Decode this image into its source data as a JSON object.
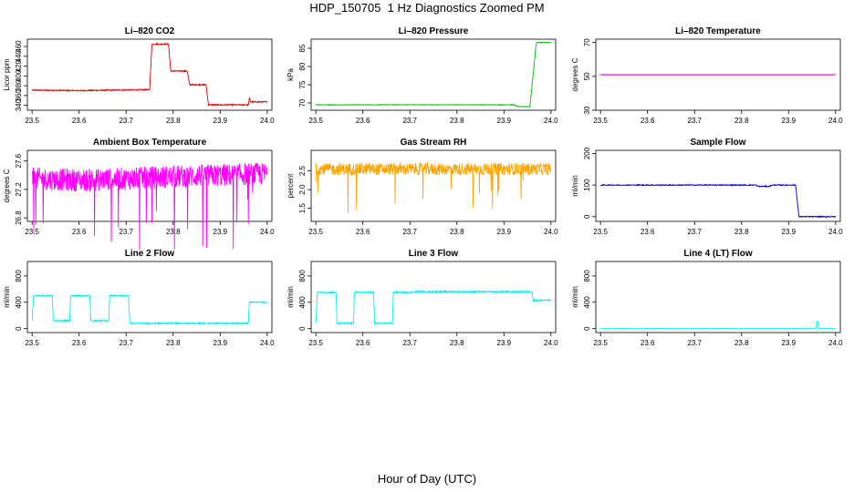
{
  "title": "HDP_150705  1 Hz Diagnostics Zoomed PM",
  "xlabel": "Hour of Day (UTC)",
  "colors": {
    "red": "#dd0000",
    "green": "#00bb00",
    "magenta": "#ff00ff",
    "orange": "#ffa500",
    "blue": "#0000cc",
    "cyan": "#00eeee"
  },
  "chart_data": [
    {
      "type": "line",
      "title": "Li–820 CO2",
      "xlabel": "",
      "ylabel": "Licor ppm",
      "xlim": [
        23.49,
        24.01
      ],
      "ylim": [
        330,
        475
      ],
      "xticks": [
        "23.5",
        "23.6",
        "23.7",
        "23.8",
        "23.9",
        "24.0"
      ],
      "yticks": [
        "340",
        "360",
        "380",
        "400",
        "420",
        "440",
        "460"
      ],
      "color": "red",
      "series": [
        {
          "x": [
            23.5,
            23.6,
            23.75,
            23.755,
            23.79,
            23.795,
            23.83,
            23.835,
            23.87,
            23.875,
            23.96,
            23.962,
            23.965,
            23.97,
            24.0
          ],
          "y": [
            371,
            370,
            372,
            465,
            465,
            410,
            410,
            382,
            382,
            341,
            341,
            355,
            347,
            347,
            347
          ]
        }
      ]
    },
    {
      "type": "line",
      "title": "Li–820 Pressure",
      "xlabel": "",
      "ylabel": "kPa",
      "xlim": [
        23.49,
        24.01
      ],
      "ylim": [
        68,
        87.5
      ],
      "xticks": [
        "23.5",
        "23.6",
        "23.7",
        "23.8",
        "23.9",
        "24.0"
      ],
      "yticks": [
        "70",
        "75",
        "80",
        "85"
      ],
      "color": "green",
      "series": [
        {
          "x": [
            23.5,
            23.92,
            23.93,
            23.955,
            23.96,
            23.968,
            23.97,
            24.0
          ],
          "y": [
            69.5,
            69.5,
            69.0,
            69.0,
            75.0,
            85.5,
            86.6,
            86.6
          ]
        }
      ]
    },
    {
      "type": "line",
      "title": "Li–820 Temperature",
      "xlabel": "",
      "ylabel": "degrees C",
      "xlim": [
        23.49,
        24.01
      ],
      "ylim": [
        30,
        72
      ],
      "xticks": [
        "23.5",
        "23.6",
        "23.7",
        "23.8",
        "23.9",
        "24.0"
      ],
      "yticks": [
        "30",
        "50",
        "70"
      ],
      "color": "magenta",
      "series": [
        {
          "x": [
            23.5,
            24.0
          ],
          "y": [
            51.0,
            51.0
          ]
        }
      ]
    },
    {
      "type": "line",
      "title": "Ambient Box Temperature",
      "xlabel": "",
      "ylabel": "degrees C",
      "xlim": [
        23.49,
        24.01
      ],
      "ylim": [
        26.75,
        27.75
      ],
      "xticks": [
        "23.5",
        "23.6",
        "23.7",
        "23.8",
        "23.9",
        "24.0"
      ],
      "yticks": [
        "26.8",
        "27.2",
        "27.6"
      ],
      "color": "magenta",
      "series": [
        {
          "x": [
            23.5,
            23.6,
            23.7,
            23.8,
            23.9,
            24.0
          ],
          "y": [
            27.35,
            27.33,
            27.35,
            27.38,
            27.4,
            27.42
          ]
        }
      ]
    },
    {
      "type": "line",
      "title": "Gas Stream RH",
      "xlabel": "",
      "ylabel": "percent",
      "xlim": [
        23.49,
        24.01
      ],
      "ylim": [
        1.15,
        3.05
      ],
      "xticks": [
        "23.5",
        "23.6",
        "23.7",
        "23.8",
        "23.9",
        "24.0"
      ],
      "yticks": [
        "1.5",
        "2.0",
        "2.5"
      ],
      "color": "orange",
      "series": [
        {
          "x": [
            23.5,
            23.6,
            23.7,
            23.8,
            23.9,
            24.0
          ],
          "y": [
            2.55,
            2.55,
            2.55,
            2.55,
            2.55,
            2.55
          ]
        }
      ]
    },
    {
      "type": "line",
      "title": "Sample Flow",
      "xlabel": "",
      "ylabel": "ml/min",
      "xlim": [
        23.49,
        24.01
      ],
      "ylim": [
        -15,
        210
      ],
      "xticks": [
        "23.5",
        "23.6",
        "23.7",
        "23.8",
        "23.9",
        "24.0"
      ],
      "yticks": [
        "0",
        "100",
        "200"
      ],
      "color": "blue",
      "series": [
        {
          "x": [
            23.5,
            23.83,
            23.835,
            23.86,
            23.865,
            23.915,
            23.922,
            23.93,
            24.0
          ],
          "y": [
            100,
            100,
            96,
            96,
            100,
            100,
            0,
            0,
            0
          ]
        }
      ]
    },
    {
      "type": "line",
      "title": "Line 2 Flow",
      "xlabel": "",
      "ylabel": "ml/min",
      "xlim": [
        23.49,
        24.01
      ],
      "ylim": [
        -60,
        1020
      ],
      "xticks": [
        "23.5",
        "23.6",
        "23.7",
        "23.8",
        "23.9",
        "24.0"
      ],
      "yticks": [
        "0",
        "400",
        "800"
      ],
      "color": "cyan",
      "series": [
        {
          "x": [
            23.5,
            23.503,
            23.543,
            23.545,
            23.58,
            23.582,
            23.623,
            23.625,
            23.663,
            23.665,
            23.705,
            23.708,
            23.96,
            23.962,
            24.0
          ],
          "y": [
            120,
            500,
            500,
            120,
            120,
            500,
            500,
            120,
            120,
            500,
            500,
            80,
            80,
            400,
            400
          ]
        }
      ]
    },
    {
      "type": "line",
      "title": "Line 3 Flow",
      "xlabel": "",
      "ylabel": "ml/min",
      "xlim": [
        23.49,
        24.01
      ],
      "ylim": [
        -60,
        1020
      ],
      "xticks": [
        "23.5",
        "23.6",
        "23.7",
        "23.8",
        "23.9",
        "24.0"
      ],
      "yticks": [
        "0",
        "400",
        "800"
      ],
      "color": "cyan",
      "series": [
        {
          "x": [
            23.5,
            23.503,
            23.543,
            23.545,
            23.58,
            23.582,
            23.623,
            23.625,
            23.663,
            23.665,
            23.705,
            23.708,
            23.96,
            23.962,
            24.0
          ],
          "y": [
            80,
            550,
            550,
            80,
            80,
            550,
            550,
            80,
            80,
            550,
            550,
            560,
            560,
            430,
            430
          ]
        }
      ]
    },
    {
      "type": "line",
      "title": "Line 4 (LT) Flow",
      "xlabel": "",
      "ylabel": "ml/min",
      "xlim": [
        23.49,
        24.01
      ],
      "ylim": [
        -60,
        1020
      ],
      "xticks": [
        "23.5",
        "23.6",
        "23.7",
        "23.8",
        "23.9",
        "24.0"
      ],
      "yticks": [
        "0",
        "400",
        "800"
      ],
      "color": "cyan",
      "series": [
        {
          "x": [
            23.5,
            23.958,
            23.96,
            23.962,
            23.964,
            24.0
          ],
          "y": [
            0,
            0,
            110,
            110,
            0,
            0
          ]
        }
      ]
    }
  ]
}
